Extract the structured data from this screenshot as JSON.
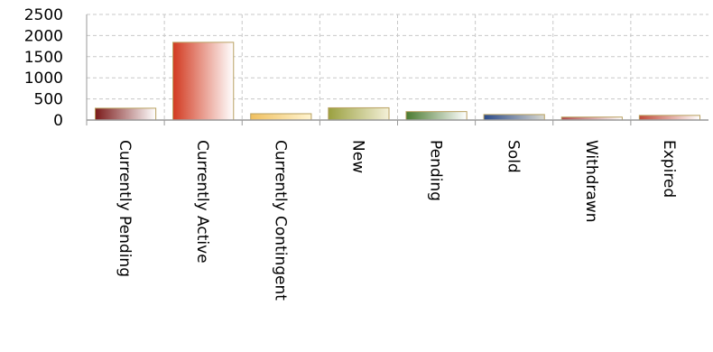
{
  "chart_data": {
    "type": "bar",
    "title": "",
    "xlabel": "",
    "ylabel": "",
    "categories": [
      "Currently Pending",
      "Currently Active",
      "Currently Contingent",
      "New",
      "Pending",
      "Sold",
      "Withdrawn",
      "Expired"
    ],
    "tick_labels": [
      "Currently Pending",
      "Currently Active",
      "Currently Contingent",
      "New",
      "Pending",
      "Sold",
      "Withdrawn",
      "Expired"
    ],
    "values": [
      280,
      1840,
      150,
      290,
      200,
      130,
      70,
      110
    ],
    "ylim": [
      0,
      2500
    ],
    "yticks": [
      0,
      500,
      1000,
      1500,
      2000,
      2500
    ],
    "ytick_labels": [
      "0",
      "500",
      "1000",
      "1500",
      "2000",
      "2500"
    ],
    "grid": true,
    "legend": "none",
    "bar_colors": [
      [
        "#7a1a1a",
        "#ffffff"
      ],
      [
        "#d23a20",
        "#ffffff"
      ],
      [
        "#f0c060",
        "#fff4d0"
      ],
      [
        "#9aa040",
        "#f4f0d8"
      ],
      [
        "#4a7a30",
        "#ffffff"
      ],
      [
        "#2a4a8a",
        "#d8d8d0"
      ],
      [
        "#b04848",
        "#ffffff"
      ],
      [
        "#c04a3a",
        "#ffffff"
      ]
    ],
    "bar_border": "#b8a060",
    "grid_color": "#c8c8c8"
  }
}
